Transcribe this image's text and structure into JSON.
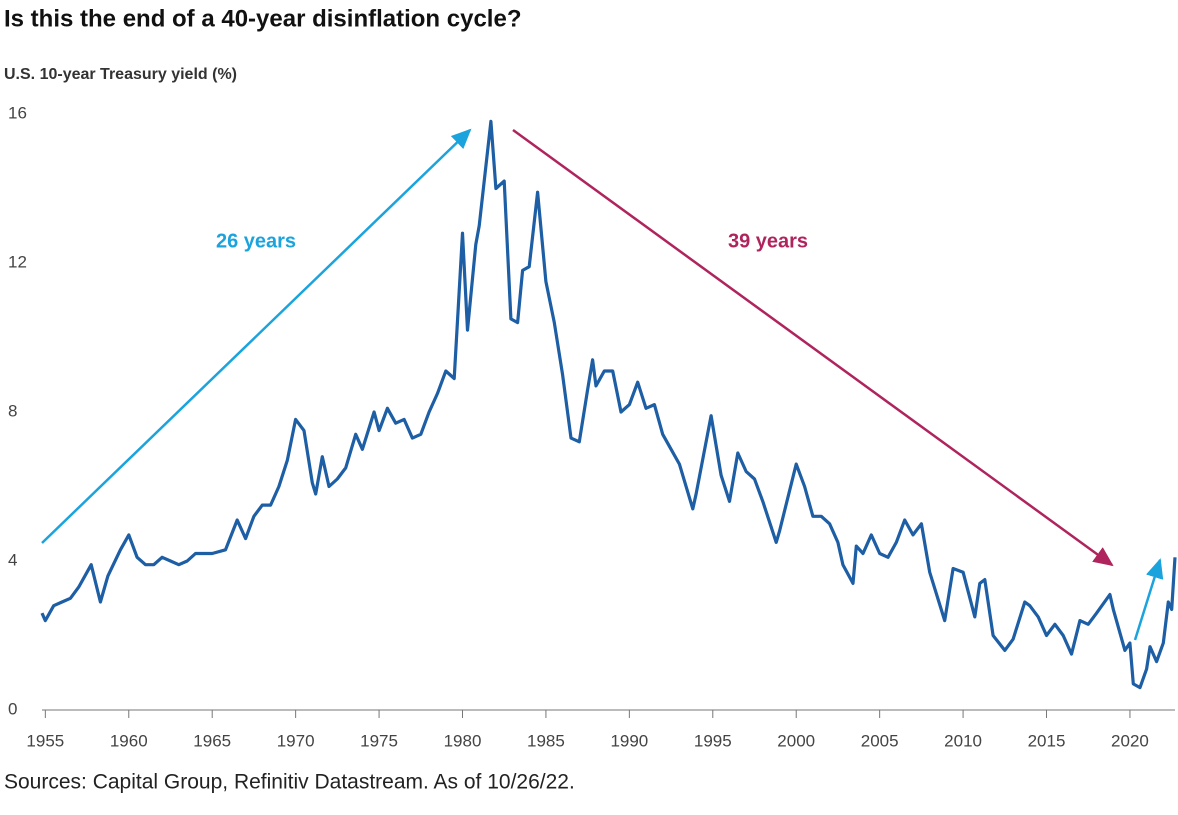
{
  "chart_data": {
    "type": "line",
    "title": "Is this the end of a 40-year disinflation cycle?",
    "subtitle": "U.S. 10-year Treasury yield (%)",
    "source": "Sources: Capital Group, Refinitiv Datastream. As of 10/26/22.",
    "annotations": [
      "26 years",
      "39 years"
    ],
    "xlim": [
      1954.8,
      2022.7
    ],
    "xticks": [
      1955,
      1960,
      1965,
      1970,
      1975,
      1980,
      1985,
      1990,
      1995,
      2000,
      2005,
      2010,
      2015,
      2020
    ],
    "ylim": [
      0,
      16
    ],
    "yticks": [
      0,
      4,
      8,
      12,
      16
    ],
    "grid": false,
    "series": [
      {
        "name": "U.S. 10-year Treasury yield",
        "color": "#1d5ea4",
        "x": [
          1954.8,
          1955,
          1955.5,
          1956,
          1956.5,
          1957,
          1957.75,
          1958.3,
          1958.75,
          1959.5,
          1960,
          1960.5,
          1961,
          1961.5,
          1962,
          1962.5,
          1963,
          1963.5,
          1964,
          1965,
          1965.8,
          1966.5,
          1967,
          1967.5,
          1968,
          1968.5,
          1969,
          1969.5,
          1970,
          1970.5,
          1971,
          1971.2,
          1971.6,
          1972,
          1972.5,
          1973,
          1973.6,
          1974,
          1974.7,
          1975,
          1975.5,
          1976,
          1976.5,
          1977,
          1977.5,
          1978,
          1978.5,
          1979,
          1979.5,
          1980,
          1980.3,
          1980.8,
          1981,
          1981.7,
          1982,
          1982.5,
          1982.9,
          1983.3,
          1983.6,
          1984,
          1984.5,
          1985,
          1985.5,
          1986,
          1986.5,
          1987,
          1987.5,
          1987.8,
          1988,
          1988.5,
          1989,
          1989.5,
          1990,
          1990.5,
          1991,
          1991.5,
          1992,
          1992.5,
          1993,
          1993.8,
          1994,
          1994.9,
          1995.5,
          1996,
          1996.5,
          1997,
          1997.5,
          1998,
          1998.8,
          1999,
          2000,
          2000.5,
          2001,
          2001.5,
          2002,
          2002.5,
          2002.8,
          2003.4,
          2003.6,
          2004,
          2004.5,
          2005,
          2005.5,
          2006,
          2006.5,
          2007,
          2007.5,
          2008,
          2008.9,
          2009.4,
          2010,
          2010.7,
          2011,
          2011.3,
          2011.8,
          2012.5,
          2013,
          2013.7,
          2014,
          2014.5,
          2015,
          2015.5,
          2016,
          2016.5,
          2017,
          2017.5,
          2018,
          2018.8,
          2019,
          2019.7,
          2020,
          2020.2,
          2020.6,
          2021,
          2021.2,
          2021.6,
          2022,
          2022.3,
          2022.5,
          2022.7
        ],
        "values": [
          2.6,
          2.4,
          2.8,
          2.9,
          3.0,
          3.3,
          3.9,
          2.9,
          3.6,
          4.3,
          4.7,
          4.1,
          3.9,
          3.9,
          4.1,
          4.0,
          3.9,
          4.0,
          4.2,
          4.2,
          4.3,
          5.1,
          4.6,
          5.2,
          5.5,
          5.5,
          6.0,
          6.7,
          7.8,
          7.5,
          6.1,
          5.8,
          6.8,
          6.0,
          6.2,
          6.5,
          7.4,
          7.0,
          8.0,
          7.5,
          8.1,
          7.7,
          7.8,
          7.3,
          7.4,
          8.0,
          8.5,
          9.1,
          8.9,
          12.8,
          10.2,
          12.5,
          13.0,
          15.8,
          14.0,
          14.2,
          10.5,
          10.4,
          11.8,
          11.9,
          13.9,
          11.5,
          10.4,
          9.0,
          7.3,
          7.2,
          8.6,
          9.4,
          8.7,
          9.1,
          9.1,
          8.0,
          8.2,
          8.8,
          8.1,
          8.2,
          7.4,
          7.0,
          6.6,
          5.4,
          5.8,
          7.9,
          6.3,
          5.6,
          6.9,
          6.4,
          6.2,
          5.6,
          4.5,
          4.8,
          6.6,
          6.0,
          5.2,
          5.2,
          5.0,
          4.5,
          3.9,
          3.4,
          4.4,
          4.2,
          4.7,
          4.2,
          4.1,
          4.5,
          5.1,
          4.7,
          5.0,
          3.7,
          2.4,
          3.8,
          3.7,
          2.5,
          3.4,
          3.5,
          2.0,
          1.6,
          1.9,
          2.9,
          2.8,
          2.5,
          2.0,
          2.3,
          2.0,
          1.5,
          2.4,
          2.3,
          2.6,
          3.1,
          2.7,
          1.6,
          1.8,
          0.7,
          0.6,
          1.1,
          1.7,
          1.3,
          1.8,
          2.9,
          2.7,
          4.1
        ]
      }
    ]
  }
}
